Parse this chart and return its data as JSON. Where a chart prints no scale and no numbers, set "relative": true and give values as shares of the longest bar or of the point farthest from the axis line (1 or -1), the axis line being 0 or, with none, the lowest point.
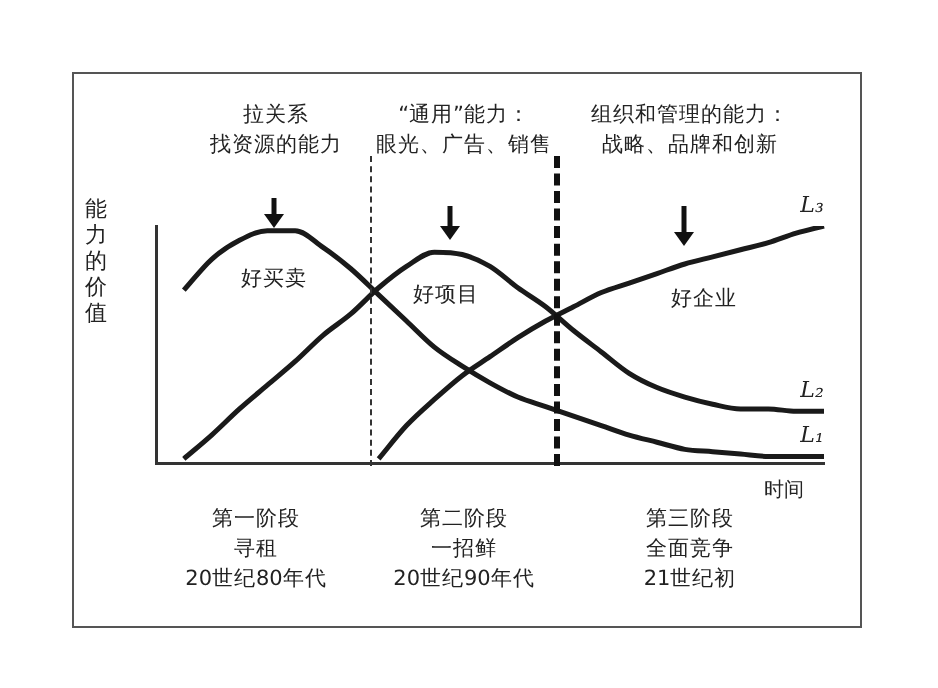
{
  "chart_data": {
    "type": "line",
    "relative": true,
    "ylabel": "能力的价值",
    "xlabel": "时间",
    "legend": false,
    "grid": false,
    "marker": "none",
    "line_style": "solid",
    "categories": [
      null,
      null,
      null,
      null,
      null,
      null,
      null,
      null,
      null,
      null,
      null,
      null,
      null,
      null,
      null,
      null,
      null,
      null,
      null,
      null,
      null,
      null,
      null,
      null,
      null
    ],
    "series": [
      {
        "name": "L₁",
        "color": "#1a1a1a",
        "values": [
          null,
          0.73,
          0.86,
          0.94,
          0.98,
          0.98,
          0.91,
          0.82,
          0.71,
          0.6,
          0.49,
          0.41,
          0.34,
          0.28,
          0.24,
          0.2,
          0.16,
          0.12,
          0.09,
          0.06,
          0.05,
          0.04,
          0.03,
          0.03,
          0.03
        ]
      },
      {
        "name": "L₂",
        "color": "#1a1a1a",
        "values": [
          null,
          0.02,
          0.12,
          0.23,
          0.33,
          0.43,
          0.54,
          0.63,
          0.74,
          0.83,
          0.89,
          0.88,
          0.83,
          0.74,
          0.66,
          0.56,
          0.47,
          0.38,
          0.32,
          0.28,
          0.25,
          0.23,
          0.23,
          0.22,
          0.22
        ]
      },
      {
        "name": "L₃",
        "color": "#1a1a1a",
        "values": [
          null,
          null,
          null,
          null,
          null,
          null,
          null,
          null,
          0.02,
          0.16,
          0.27,
          0.37,
          0.45,
          0.53,
          0.6,
          0.66,
          0.72,
          0.76,
          0.8,
          0.84,
          0.87,
          0.9,
          0.93,
          0.97,
          1
        ]
      }
    ],
    "annotations": [
      "拉关系",
      "找资源的能力",
      "“通用”能力：",
      "眼光、广告、销售",
      "组织和管理的能力：",
      "战略、品牌和创新",
      "好买卖",
      "好项目",
      "好企业",
      "第一阶段",
      "寻租",
      "20世纪80年代",
      "第二阶段",
      "一招鲜",
      "20世纪90年代",
      "第三阶段",
      "全面竞争",
      "21世纪初"
    ]
  }
}
